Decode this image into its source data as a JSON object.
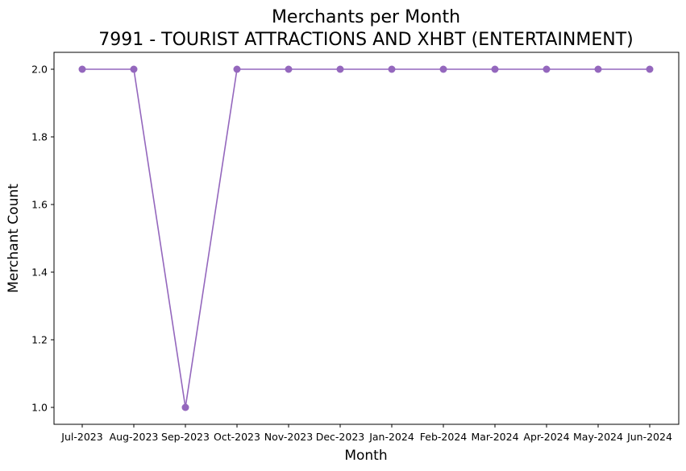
{
  "chart_data": {
    "type": "line",
    "title": "Merchants per Month",
    "subtitle": "7991 - TOURIST ATTRACTIONS AND XHBT (ENTERTAINMENT)",
    "xlabel": "Month",
    "ylabel": "Merchant Count",
    "categories": [
      "Jul-2023",
      "Aug-2023",
      "Sep-2023",
      "Oct-2023",
      "Nov-2023",
      "Dec-2023",
      "Jan-2024",
      "Feb-2024",
      "Mar-2024",
      "Apr-2024",
      "May-2024",
      "Jun-2024"
    ],
    "series": [
      {
        "values": [
          2,
          2,
          1,
          2,
          2,
          2,
          2,
          2,
          2,
          2,
          2,
          2
        ],
        "color": "#9467bd",
        "marker": "circle"
      }
    ],
    "yticks": [
      1.0,
      1.2,
      1.4,
      1.6,
      1.8,
      2.0
    ],
    "ytick_labels": [
      "1.0",
      "1.2",
      "1.4",
      "1.6",
      "1.8",
      "2.0"
    ],
    "ylim": [
      0.95,
      2.05
    ],
    "grid": false,
    "legend": "none"
  }
}
